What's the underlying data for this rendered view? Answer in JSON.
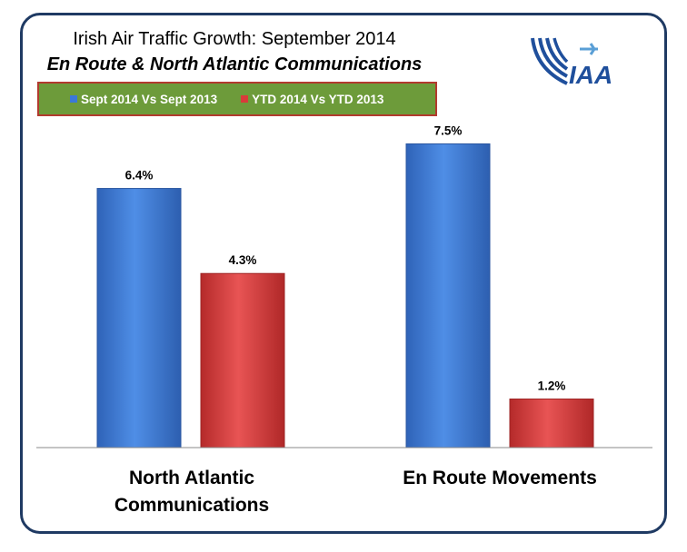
{
  "chart_data": {
    "type": "bar",
    "title": "Irish Air Traffic Growth: September 2014",
    "subtitle": "En Route & North Atlantic Communications",
    "categories": [
      "North Atlantic Communications",
      "En Route Movements"
    ],
    "series": [
      {
        "name": "Sept 2014 Vs Sept 2013",
        "values": [
          6.4,
          7.5
        ],
        "labels": [
          "6.4%",
          "7.5%"
        ],
        "color": "#3b78d8"
      },
      {
        "name": "YTD 2014 Vs YTD 2013",
        "values": [
          4.3,
          1.2
        ],
        "labels": [
          "4.3%",
          "1.2%"
        ],
        "color": "#d93a3a"
      }
    ],
    "ylim": [
      0,
      8
    ],
    "grid": false,
    "legend": "top-left"
  },
  "logo": {
    "text": "IAA",
    "color": "#1f4f9c"
  }
}
